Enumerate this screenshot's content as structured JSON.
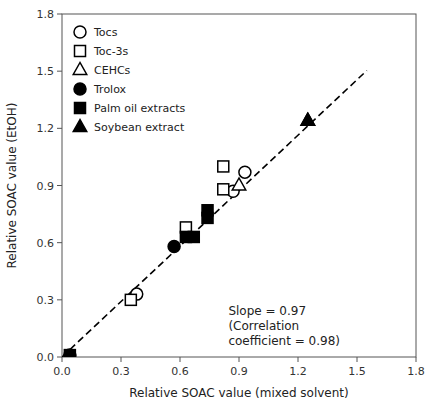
{
  "chart_data": {
    "type": "scatter",
    "xlabel": "Relative SOAC value (mixed solvent)",
    "ylabel": "Relative SOAC value (EtOH)",
    "xlim": [
      0,
      1.8
    ],
    "ylim": [
      0,
      1.8
    ],
    "xticks": [
      {
        "value": 0,
        "label": "0.0"
      },
      0.3,
      0.6,
      0.9,
      1.2,
      1.5,
      1.8
    ],
    "yticks": [
      {
        "value": 0,
        "label": "0.0"
      },
      0.3,
      0.6,
      0.9,
      1.2,
      1.5,
      1.8
    ],
    "legend": "upper left",
    "annotation": "Slope = 0.97\n(Correlation\ncoefficient = 0.98)",
    "series": [
      {
        "type": "line",
        "line_style": "dashed",
        "color": "black",
        "x": [
          0,
          1.55
        ],
        "values": [
          0,
          1.5035
        ]
      },
      {
        "name": "Tocs",
        "marker": "circle",
        "color": "white",
        "x": [
          0.38,
          0.87,
          0.93,
          0.04
        ],
        "values": [
          0.33,
          0.87,
          0.97,
          0.01
        ]
      },
      {
        "name": "Toc-3s",
        "marker": "square",
        "color": "white",
        "x": [
          0.35,
          0.63,
          0.82,
          0.82
        ],
        "values": [
          0.3,
          0.68,
          0.88,
          1.0
        ]
      },
      {
        "name": "CEHCs",
        "marker": "triangle",
        "color": "white",
        "x": [
          0.9,
          1.25
        ],
        "values": [
          0.9,
          1.24
        ]
      },
      {
        "name": "Trolox",
        "marker": "circle",
        "color": "black",
        "x": [
          0.57
        ],
        "values": [
          0.58
        ]
      },
      {
        "name": "Palm oil extracts",
        "marker": "square",
        "color": "black",
        "x": [
          0.04,
          0.63,
          0.67,
          0.74,
          0.74
        ],
        "values": [
          0.01,
          0.63,
          0.63,
          0.73,
          0.77
        ]
      },
      {
        "name": "Soybean extract",
        "marker": "triangle",
        "color": "black",
        "x": [
          1.25
        ],
        "values": [
          1.24
        ]
      }
    ]
  }
}
